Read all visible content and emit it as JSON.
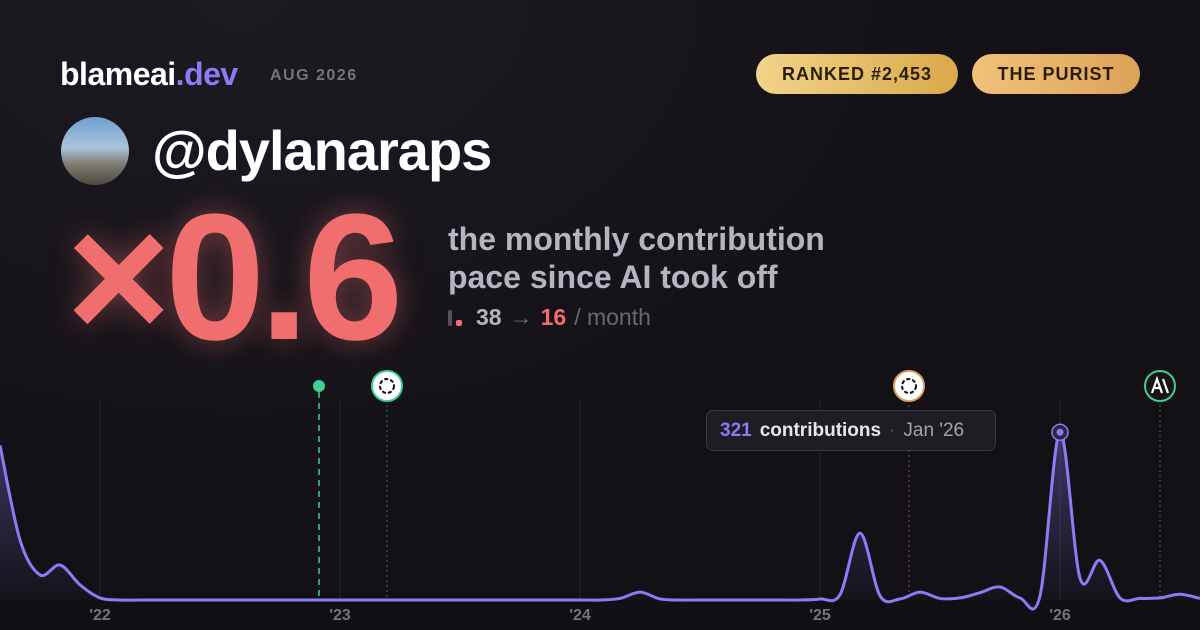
{
  "header": {
    "brand": "blameai",
    "brand_suffix": ".dev",
    "date": "AUG 2026"
  },
  "badges": [
    "RANKED #2,453",
    "THE PURIST"
  ],
  "username": "@dylanaraps",
  "multiplier": "×0.6",
  "description": [
    "the monthly contribution",
    "pace since AI took off"
  ],
  "stats": {
    "before": "38",
    "arrow": "→",
    "after": "16",
    "unit": "/ month"
  },
  "chart_data": {
    "type": "line",
    "color": "#8b7cf6",
    "ylim": [
      0,
      400
    ],
    "categories": [
      null,
      null,
      null,
      null,
      null,
      "'22",
      null,
      null,
      null,
      null,
      null,
      null,
      null,
      null,
      null,
      null,
      null,
      "'23",
      null,
      null,
      null,
      null,
      null,
      null,
      null,
      null,
      null,
      null,
      null,
      "'24",
      null,
      null,
      null,
      null,
      null,
      null,
      null,
      null,
      null,
      null,
      null,
      "'25",
      null,
      null,
      null,
      null,
      null,
      null,
      null,
      null,
      null,
      null,
      null,
      "'26",
      null,
      null,
      null,
      null,
      null,
      null,
      null
    ],
    "values": [
      296,
      115,
      48,
      67,
      29,
      4,
      0,
      0,
      0,
      0,
      0,
      0,
      0,
      0,
      0,
      0,
      0,
      0,
      0,
      0,
      0,
      0,
      0,
      0,
      0,
      0,
      0,
      0,
      0,
      0,
      0,
      3,
      15,
      2,
      0,
      0,
      0,
      0,
      0,
      0,
      0,
      2,
      10,
      128,
      8,
      2,
      15,
      3,
      4,
      14,
      25,
      4,
      8,
      321,
      42,
      76,
      4,
      3,
      4,
      11,
      3
    ],
    "tooltip": {
      "value": 321,
      "label": "contributions",
      "date": "Jan '26"
    }
  }
}
